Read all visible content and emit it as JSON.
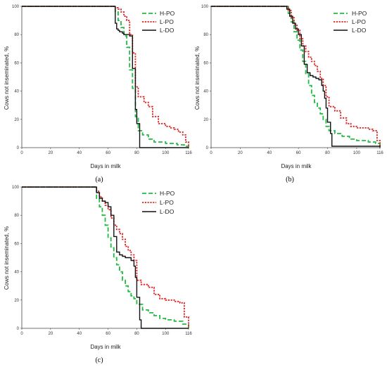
{
  "colors": {
    "H-PO": "#22bb44",
    "L-PO": "#dd2222",
    "L-DO": "#111111",
    "axis": "#444444"
  },
  "chart_data": [
    {
      "type": "line",
      "panel_label": "(a)",
      "xlabel": "Days in milk",
      "ylabel": "Cows not inseminated, %",
      "xlim": [
        0,
        116
      ],
      "ylim": [
        0,
        100
      ],
      "xticks": [
        "0",
        "20",
        "40",
        "60",
        "80",
        "100",
        "116"
      ],
      "yticks": [
        "0",
        "20",
        "40",
        "60",
        "80",
        "100"
      ],
      "legend_position": "top-right",
      "series": [
        {
          "name": "H-PO",
          "style": "dashed",
          "points": [
            [
              0,
              100
            ],
            [
              63,
              100
            ],
            [
              65,
              96
            ],
            [
              67,
              90
            ],
            [
              69,
              85
            ],
            [
              71,
              79
            ],
            [
              73,
              71
            ],
            [
              75,
              55
            ],
            [
              77,
              42
            ],
            [
              79,
              22
            ],
            [
              81,
              12
            ],
            [
              84,
              9
            ],
            [
              88,
              6
            ],
            [
              92,
              4
            ],
            [
              100,
              3
            ],
            [
              108,
              2
            ],
            [
              113,
              1
            ],
            [
              116,
              0
            ]
          ]
        },
        {
          "name": "L-PO",
          "style": "dotted",
          "points": [
            [
              0,
              100
            ],
            [
              64,
              100
            ],
            [
              65,
              99
            ],
            [
              67,
              98
            ],
            [
              69,
              96
            ],
            [
              71,
              93
            ],
            [
              73,
              90
            ],
            [
              75,
              80
            ],
            [
              77,
              67
            ],
            [
              79,
              43
            ],
            [
              81,
              36
            ],
            [
              85,
              32
            ],
            [
              88,
              29
            ],
            [
              91,
              22
            ],
            [
              95,
              17
            ],
            [
              100,
              15
            ],
            [
              103,
              14
            ],
            [
              106,
              13
            ],
            [
              109,
              11
            ],
            [
              112,
              9
            ],
            [
              114,
              4
            ],
            [
              116,
              0
            ]
          ]
        },
        {
          "name": "L-DO",
          "style": "solid",
          "points": [
            [
              0,
              100
            ],
            [
              64,
              100
            ],
            [
              65,
              88
            ],
            [
              66,
              84
            ],
            [
              67,
              83
            ],
            [
              68,
              82
            ],
            [
              70,
              81
            ],
            [
              71,
              80
            ],
            [
              73,
              80
            ],
            [
              74,
              80
            ],
            [
              75,
              79
            ],
            [
              77,
              56
            ],
            [
              79,
              27
            ],
            [
              80,
              17
            ],
            [
              82,
              0
            ],
            [
              116,
              0
            ]
          ]
        }
      ]
    },
    {
      "type": "line",
      "panel_label": "(b)",
      "xlabel": "Days in milk",
      "ylabel": "Cows not inseminated, %",
      "xlim": [
        0,
        116
      ],
      "ylim": [
        0,
        100
      ],
      "xticks": [
        "0",
        "20",
        "40",
        "60",
        "80",
        "100",
        "116"
      ],
      "yticks": [
        "0",
        "20",
        "40",
        "60",
        "80",
        "100"
      ],
      "legend_position": "top-right",
      "series": [
        {
          "name": "H-PO",
          "style": "dashed",
          "points": [
            [
              0,
              100
            ],
            [
              51,
              100
            ],
            [
              53,
              95
            ],
            [
              55,
              89
            ],
            [
              57,
              82
            ],
            [
              59,
              76
            ],
            [
              61,
              69
            ],
            [
              63,
              61
            ],
            [
              65,
              52
            ],
            [
              67,
              44
            ],
            [
              69,
              37
            ],
            [
              71,
              32
            ],
            [
              73,
              28
            ],
            [
              75,
              24
            ],
            [
              77,
              20
            ],
            [
              79,
              15
            ],
            [
              81,
              12
            ],
            [
              85,
              10
            ],
            [
              90,
              8
            ],
            [
              95,
              6
            ],
            [
              100,
              5
            ],
            [
              108,
              4
            ],
            [
              113,
              3
            ],
            [
              116,
              0
            ]
          ]
        },
        {
          "name": "L-PO",
          "style": "dotted",
          "points": [
            [
              0,
              100
            ],
            [
              51,
              100
            ],
            [
              53,
              97
            ],
            [
              55,
              92
            ],
            [
              57,
              87
            ],
            [
              59,
              83
            ],
            [
              61,
              77
            ],
            [
              63,
              72
            ],
            [
              65,
              68
            ],
            [
              67,
              64
            ],
            [
              69,
              61
            ],
            [
              71,
              58
            ],
            [
              73,
              54
            ],
            [
              75,
              49
            ],
            [
              77,
              44
            ],
            [
              79,
              36
            ],
            [
              81,
              29
            ],
            [
              85,
              26
            ],
            [
              89,
              21
            ],
            [
              93,
              17
            ],
            [
              96,
              15
            ],
            [
              100,
              14
            ],
            [
              104,
              14
            ],
            [
              108,
              13
            ],
            [
              111,
              12
            ],
            [
              114,
              5
            ],
            [
              116,
              0
            ]
          ]
        },
        {
          "name": "L-DO",
          "style": "solid",
          "points": [
            [
              0,
              100
            ],
            [
              51,
              100
            ],
            [
              52,
              98
            ],
            [
              54,
              93
            ],
            [
              56,
              88
            ],
            [
              58,
              84
            ],
            [
              60,
              80
            ],
            [
              62,
              72
            ],
            [
              64,
              59
            ],
            [
              66,
              53
            ],
            [
              68,
              51
            ],
            [
              70,
              50
            ],
            [
              72,
              49
            ],
            [
              74,
              48
            ],
            [
              76,
              44
            ],
            [
              77,
              40
            ],
            [
              78,
              35
            ],
            [
              79,
              28
            ],
            [
              80,
              18
            ],
            [
              82,
              10
            ],
            [
              83,
              1
            ],
            [
              116,
              0
            ]
          ]
        }
      ]
    },
    {
      "type": "line",
      "panel_label": "(c)",
      "xlabel": "Days in milk",
      "ylabel": "Cows not inseminated, %",
      "xlim": [
        0,
        116
      ],
      "ylim": [
        0,
        100
      ],
      "xticks": [
        "0",
        "20",
        "40",
        "60",
        "80",
        "100",
        "116"
      ],
      "yticks": [
        "0",
        "20",
        "40",
        "60",
        "80",
        "100"
      ],
      "legend_position": "top-right",
      "series": [
        {
          "name": "H-PO",
          "style": "dashed",
          "points": [
            [
              0,
              100
            ],
            [
              50,
              100
            ],
            [
              52,
              92
            ],
            [
              54,
              86
            ],
            [
              56,
              80
            ],
            [
              58,
              73
            ],
            [
              60,
              64
            ],
            [
              62,
              57
            ],
            [
              64,
              50
            ],
            [
              66,
              45
            ],
            [
              68,
              40
            ],
            [
              70,
              34
            ],
            [
              72,
              30
            ],
            [
              74,
              26
            ],
            [
              76,
              23
            ],
            [
              78,
              21
            ],
            [
              80,
              17
            ],
            [
              84,
              13
            ],
            [
              88,
              11
            ],
            [
              92,
              9
            ],
            [
              96,
              7
            ],
            [
              100,
              6
            ],
            [
              106,
              5
            ],
            [
              112,
              3
            ],
            [
              116,
              0
            ]
          ]
        },
        {
          "name": "L-PO",
          "style": "dotted",
          "points": [
            [
              0,
              100
            ],
            [
              50,
              100
            ],
            [
              52,
              97
            ],
            [
              54,
              93
            ],
            [
              56,
              90
            ],
            [
              58,
              87
            ],
            [
              60,
              84
            ],
            [
              62,
              78
            ],
            [
              64,
              73
            ],
            [
              66,
              70
            ],
            [
              68,
              67
            ],
            [
              70,
              63
            ],
            [
              72,
              58
            ],
            [
              74,
              55
            ],
            [
              76,
              52
            ],
            [
              78,
              48
            ],
            [
              80,
              34
            ],
            [
              83,
              31
            ],
            [
              88,
              29
            ],
            [
              92,
              24
            ],
            [
              96,
              21
            ],
            [
              100,
              20
            ],
            [
              106,
              19
            ],
            [
              110,
              18
            ],
            [
              113,
              8
            ],
            [
              116,
              0
            ]
          ]
        },
        {
          "name": "L-DO",
          "style": "solid",
          "points": [
            [
              0,
              100
            ],
            [
              50,
              100
            ],
            [
              52,
              96
            ],
            [
              54,
              92
            ],
            [
              56,
              90
            ],
            [
              58,
              89
            ],
            [
              60,
              86
            ],
            [
              62,
              80
            ],
            [
              64,
              65
            ],
            [
              66,
              54
            ],
            [
              68,
              52
            ],
            [
              70,
              51
            ],
            [
              72,
              50
            ],
            [
              74,
              50
            ],
            [
              76,
              48
            ],
            [
              78,
              44
            ],
            [
              79,
              36
            ],
            [
              80,
              22
            ],
            [
              82,
              6
            ],
            [
              83,
              0
            ],
            [
              116,
              0
            ]
          ]
        }
      ]
    }
  ]
}
